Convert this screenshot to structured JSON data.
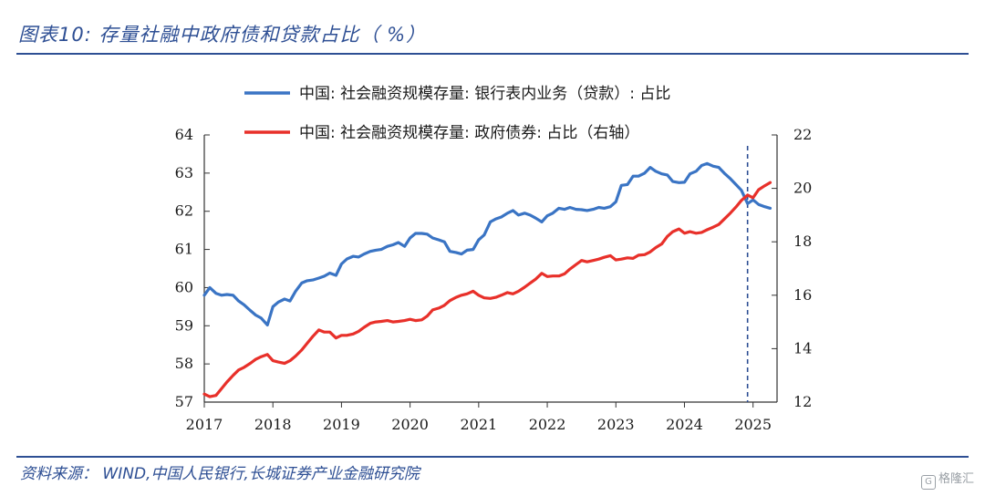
{
  "header": {
    "title": "图表10:  存量社融中政府债和贷款占比（ %）"
  },
  "footer": {
    "source": "资料来源：  WIND,中国人民银行,长城证券产业金融研究院",
    "watermark": "格隆汇"
  },
  "colors": {
    "blue": "#3a74c4",
    "red": "#e8302a",
    "accent": "#2e4f94"
  },
  "icons": {
    "watermark_logo": "gelonghui-logo-icon"
  },
  "chart_data": {
    "type": "line",
    "xlim": [
      2017,
      2025.35
    ],
    "x_tick_labels": [
      "2017",
      "2018",
      "2019",
      "2020",
      "2021",
      "2022",
      "2023",
      "2024",
      "2025"
    ],
    "y_left": {
      "range": [
        57,
        64
      ],
      "ticks": [
        "57",
        "58",
        "59",
        "60",
        "61",
        "62",
        "63",
        "64"
      ]
    },
    "y_right": {
      "range": [
        12,
        22
      ],
      "ticks": [
        "12",
        "14",
        "16",
        "18",
        "20",
        "22"
      ]
    },
    "grid": false,
    "legend_position": "top-center",
    "vline_x": 2024.92,
    "series": [
      {
        "name": "中国: 社会融资规模存量: 银行表内业务（贷款）: 占比",
        "axis": "left",
        "color": "#3a74c4",
        "x": [
          2017.0,
          2017.08,
          2017.17,
          2017.25,
          2017.33,
          2017.42,
          2017.5,
          2017.58,
          2017.67,
          2017.75,
          2017.83,
          2017.92,
          2018.0,
          2018.08,
          2018.17,
          2018.25,
          2018.33,
          2018.42,
          2018.5,
          2018.58,
          2018.67,
          2018.75,
          2018.83,
          2018.92,
          2019.0,
          2019.08,
          2019.17,
          2019.25,
          2019.33,
          2019.42,
          2019.5,
          2019.58,
          2019.67,
          2019.75,
          2019.83,
          2019.92,
          2020.0,
          2020.08,
          2020.17,
          2020.25,
          2020.33,
          2020.42,
          2020.5,
          2020.58,
          2020.67,
          2020.75,
          2020.83,
          2020.92,
          2021.0,
          2021.08,
          2021.17,
          2021.25,
          2021.33,
          2021.42,
          2021.5,
          2021.58,
          2021.67,
          2021.75,
          2021.83,
          2021.92,
          2022.0,
          2022.08,
          2022.17,
          2022.25,
          2022.33,
          2022.42,
          2022.5,
          2022.58,
          2022.67,
          2022.75,
          2022.83,
          2022.92,
          2023.0,
          2023.08,
          2023.17,
          2023.25,
          2023.33,
          2023.42,
          2023.5,
          2023.58,
          2023.67,
          2023.75,
          2023.83,
          2023.92,
          2024.0,
          2024.08,
          2024.17,
          2024.25,
          2024.33,
          2024.42,
          2024.5,
          2024.58,
          2024.67,
          2024.75,
          2024.83,
          2024.92,
          2025.0,
          2025.08,
          2025.17,
          2025.25
        ],
        "y": [
          59.8,
          60.0,
          59.85,
          59.8,
          59.82,
          59.8,
          59.65,
          59.55,
          59.4,
          59.28,
          59.2,
          59.02,
          59.5,
          59.62,
          59.7,
          59.65,
          59.9,
          60.12,
          60.18,
          60.2,
          60.25,
          60.3,
          60.38,
          60.32,
          60.62,
          60.75,
          60.82,
          60.8,
          60.88,
          60.95,
          60.98,
          61.0,
          61.08,
          61.12,
          61.18,
          61.08,
          61.3,
          61.42,
          61.42,
          61.4,
          61.3,
          61.25,
          61.2,
          60.95,
          60.92,
          60.88,
          60.98,
          61.0,
          61.25,
          61.38,
          61.72,
          61.8,
          61.85,
          61.95,
          62.02,
          61.9,
          61.95,
          61.9,
          61.82,
          61.72,
          61.88,
          61.95,
          62.08,
          62.05,
          62.1,
          62.05,
          62.04,
          62.02,
          62.05,
          62.1,
          62.08,
          62.12,
          62.25,
          62.68,
          62.7,
          62.92,
          62.92,
          63.0,
          63.15,
          63.05,
          62.98,
          62.95,
          62.78,
          62.75,
          62.76,
          62.98,
          63.05,
          63.2,
          63.25,
          63.18,
          63.15,
          63.0,
          62.85,
          62.7,
          62.55,
          62.2,
          62.3,
          62.18,
          62.12,
          62.08
        ]
      },
      {
        "name": "中国: 社会融资规模存量: 政府债券: 占比（右轴）",
        "axis": "right",
        "color": "#e8302a",
        "x": [
          2017.0,
          2017.08,
          2017.17,
          2017.25,
          2017.33,
          2017.42,
          2017.5,
          2017.58,
          2017.67,
          2017.75,
          2017.83,
          2017.92,
          2018.0,
          2018.08,
          2018.17,
          2018.25,
          2018.33,
          2018.42,
          2018.5,
          2018.58,
          2018.67,
          2018.75,
          2018.83,
          2018.92,
          2019.0,
          2019.08,
          2019.17,
          2019.25,
          2019.33,
          2019.42,
          2019.5,
          2019.58,
          2019.67,
          2019.75,
          2019.83,
          2019.92,
          2020.0,
          2020.08,
          2020.17,
          2020.25,
          2020.33,
          2020.42,
          2020.5,
          2020.58,
          2020.67,
          2020.75,
          2020.83,
          2020.92,
          2021.0,
          2021.08,
          2021.17,
          2021.25,
          2021.33,
          2021.42,
          2021.5,
          2021.58,
          2021.67,
          2021.75,
          2021.83,
          2021.92,
          2022.0,
          2022.08,
          2022.17,
          2022.25,
          2022.33,
          2022.42,
          2022.5,
          2022.58,
          2022.67,
          2022.75,
          2022.83,
          2022.92,
          2023.0,
          2023.08,
          2023.17,
          2023.25,
          2023.33,
          2023.42,
          2023.5,
          2023.58,
          2023.67,
          2023.75,
          2023.83,
          2023.92,
          2024.0,
          2024.08,
          2024.17,
          2024.25,
          2024.33,
          2024.42,
          2024.5,
          2024.58,
          2024.67,
          2024.75,
          2024.83,
          2024.92,
          2025.0,
          2025.08,
          2025.17,
          2025.25
        ],
        "y": [
          12.3,
          12.2,
          12.25,
          12.5,
          12.75,
          13.0,
          13.2,
          13.3,
          13.45,
          13.6,
          13.7,
          13.78,
          13.55,
          13.5,
          13.45,
          13.55,
          13.72,
          13.95,
          14.2,
          14.45,
          14.7,
          14.62,
          14.62,
          14.4,
          14.5,
          14.5,
          14.55,
          14.65,
          14.8,
          14.95,
          15.0,
          15.02,
          15.05,
          15.0,
          15.02,
          15.05,
          15.1,
          15.05,
          15.08,
          15.22,
          15.45,
          15.52,
          15.62,
          15.8,
          15.92,
          16.0,
          16.05,
          16.15,
          16.0,
          15.9,
          15.88,
          15.92,
          16.0,
          16.1,
          16.05,
          16.15,
          16.3,
          16.45,
          16.6,
          16.82,
          16.7,
          16.72,
          16.72,
          16.8,
          16.98,
          17.15,
          17.3,
          17.25,
          17.3,
          17.35,
          17.42,
          17.48,
          17.32,
          17.35,
          17.4,
          17.38,
          17.5,
          17.52,
          17.62,
          17.78,
          17.92,
          18.2,
          18.38,
          18.48,
          18.32,
          18.38,
          18.32,
          18.35,
          18.45,
          18.55,
          18.65,
          18.85,
          19.08,
          19.3,
          19.55,
          19.75,
          19.65,
          19.95,
          20.1,
          20.22
        ]
      }
    ]
  }
}
